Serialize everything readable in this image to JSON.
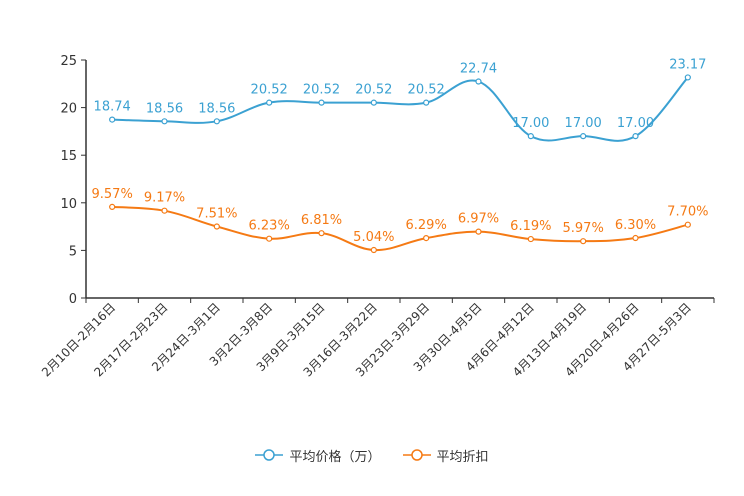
{
  "chart_data": {
    "type": "line",
    "title": "",
    "xlabel": "",
    "ylabel": "",
    "ylim": [
      0,
      25
    ],
    "yticks": [
      0,
      5,
      10,
      15,
      20,
      25
    ],
    "categories": [
      "2月10日-2月16日",
      "2月17日-2月23日",
      "2月24日-3月1日",
      "3月2日-3月8日",
      "3月9日-3月15日",
      "3月16日-3月22日",
      "3月23日-3月29日",
      "3月30日-4月5日",
      "4月6日-4月12日",
      "4月13日-4月19日",
      "4月20日-4月26日",
      "4月27日-5月3日"
    ],
    "series": [
      {
        "name": "平均价格（万）",
        "color": "#3ba1d2",
        "values": [
          18.74,
          18.56,
          18.56,
          20.52,
          20.52,
          20.52,
          20.52,
          22.74,
          17.0,
          17.0,
          17.0,
          23.17
        ],
        "labels": [
          "18.74",
          "18.56",
          "18.56",
          "20.52",
          "20.52",
          "20.52",
          "20.52",
          "22.74",
          "17.00",
          "17.00",
          "17.00",
          "23.17"
        ]
      },
      {
        "name": "平均折扣",
        "color": "#f57a14",
        "values": [
          9.57,
          9.17,
          7.51,
          6.23,
          6.81,
          5.04,
          6.29,
          6.97,
          6.19,
          5.97,
          6.3,
          7.7
        ],
        "labels": [
          "9.57%",
          "9.17%",
          "7.51%",
          "6.23%",
          "6.81%",
          "5.04%",
          "6.29%",
          "6.97%",
          "6.19%",
          "5.97%",
          "6.30%",
          "7.70%"
        ]
      }
    ],
    "legend_position": "bottom-center",
    "grid": false
  }
}
